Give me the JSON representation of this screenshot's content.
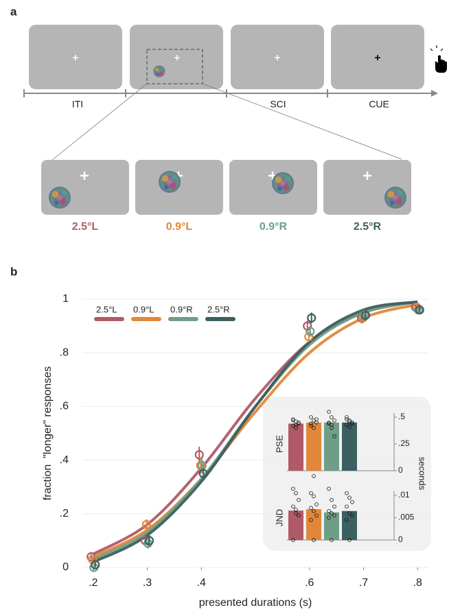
{
  "panel_a": {
    "label": "a",
    "timeline": [
      "ITI",
      "SCI",
      "CUE"
    ],
    "conditions": [
      "2.5°L",
      "0.9°L",
      "0.9°R",
      "2.5°R"
    ]
  },
  "panel_b_label": "b",
  "chart_data": [
    {
      "type": "line",
      "xlabel": "presented durations (s)",
      "ylabel": "fraction  \"longer\" responses",
      "x": [
        0.2,
        0.3,
        0.4,
        0.6,
        0.7,
        0.8
      ],
      "fit_x": [
        0.2,
        0.3,
        0.4,
        0.5,
        0.6,
        0.7,
        0.8
      ],
      "series": [
        {
          "name": "2.5°L",
          "color": "#b05a68",
          "values": [
            0.04,
            0.1,
            0.42,
            0.9,
            0.93,
            0.97
          ],
          "errors": [
            0.01,
            0.02,
            0.03,
            0.02,
            0.02,
            0.01
          ],
          "fit_values": [
            0.05,
            0.16,
            0.37,
            0.63,
            0.84,
            0.95,
            0.99
          ]
        },
        {
          "name": "0.9°L",
          "color": "#e2873a",
          "values": [
            0.03,
            0.16,
            0.38,
            0.86,
            0.93,
            0.97
          ],
          "errors": [
            0.01,
            0.02,
            0.03,
            0.02,
            0.02,
            0.01
          ],
          "fit_values": [
            0.04,
            0.14,
            0.33,
            0.58,
            0.8,
            0.93,
            0.98
          ]
        },
        {
          "name": "0.9°R",
          "color": "#6f9e88",
          "values": [
            0.0,
            0.09,
            0.38,
            0.88,
            0.94,
            0.96
          ],
          "errors": [
            0.01,
            0.02,
            0.03,
            0.02,
            0.02,
            0.01
          ],
          "fit_values": [
            0.03,
            0.13,
            0.33,
            0.6,
            0.83,
            0.95,
            0.99
          ]
        },
        {
          "name": "2.5°R",
          "color": "#3c5f60",
          "values": [
            0.01,
            0.1,
            0.35,
            0.93,
            0.94,
            0.96
          ],
          "errors": [
            0.01,
            0.02,
            0.02,
            0.02,
            0.02,
            0.01
          ],
          "fit_values": [
            0.02,
            0.12,
            0.32,
            0.6,
            0.84,
            0.96,
            0.99
          ]
        }
      ],
      "xlim": [
        0.18,
        0.82
      ],
      "ylim": [
        0,
        1
      ],
      "xticks": [
        {
          "value": 0.2,
          "label": ".2"
        },
        {
          "value": 0.3,
          "label": ".3"
        },
        {
          "value": 0.4,
          "label": ".4"
        },
        {
          "value": 0.6,
          "label": ".6"
        },
        {
          "value": 0.7,
          "label": ".7"
        },
        {
          "value": 0.8,
          "label": ".8"
        }
      ],
      "yticks": [
        0,
        {
          "value": 0.2,
          "label": ".2"
        },
        {
          "value": 0.4,
          "label": ".4"
        },
        {
          "value": 0.6,
          "label": ".6"
        },
        {
          "value": 0.8,
          "label": ".8"
        },
        1
      ],
      "grid": true,
      "legend": "top-left"
    },
    {
      "type": "bar",
      "ylabel": "PSE",
      "unit_label": "seconds",
      "colors": [
        "#b05a68",
        "#e2873a",
        "#6f9e88",
        "#3c5f60"
      ],
      "values": [
        0.44,
        0.45,
        0.45,
        0.45
      ],
      "points": [
        [
          0.48,
          0.46,
          0.44,
          0.42,
          0.4,
          0.45,
          0.47,
          0.43
        ],
        [
          0.5,
          0.47,
          0.45,
          0.42,
          0.4,
          0.48,
          0.44,
          -0.05
        ],
        [
          0.55,
          0.5,
          0.47,
          0.44,
          0.4,
          0.32,
          0.45,
          0.43
        ],
        [
          0.5,
          0.47,
          0.45,
          0.43,
          0.41,
          0.44,
          0.48,
          0.46
        ]
      ],
      "ylim": [
        0,
        0.5
      ],
      "yticks": [
        0,
        {
          "value": 0.25,
          "label": ".25"
        },
        {
          "value": 0.5,
          "label": ".5"
        }
      ]
    },
    {
      "type": "bar",
      "ylabel": "JND",
      "colors": [
        "#b05a68",
        "#e2873a",
        "#6f9e88",
        "#3c5f60"
      ],
      "values": [
        0.0066,
        0.0069,
        0.0062,
        0.0065
      ],
      "points": [
        [
          0.0115,
          0.0105,
          0.009,
          0.0075,
          0.006,
          0.0055,
          0,
          0.0068
        ],
        [
          0.0105,
          0.0098,
          0.008,
          0.0072,
          0.0065,
          0.0055,
          0.0045,
          0
        ],
        [
          0.0115,
          0.009,
          0.0075,
          0.0065,
          0.006,
          0.0055,
          0.005,
          0
        ],
        [
          0.0105,
          0.0095,
          0.0085,
          0.0075,
          0.006,
          0.0055,
          0.0045,
          0
        ]
      ],
      "ylim": [
        0,
        0.01
      ],
      "yticks": [
        0,
        {
          "value": 0.005,
          "label": ".005"
        },
        {
          "value": 0.01,
          "label": ".01"
        }
      ]
    }
  ]
}
